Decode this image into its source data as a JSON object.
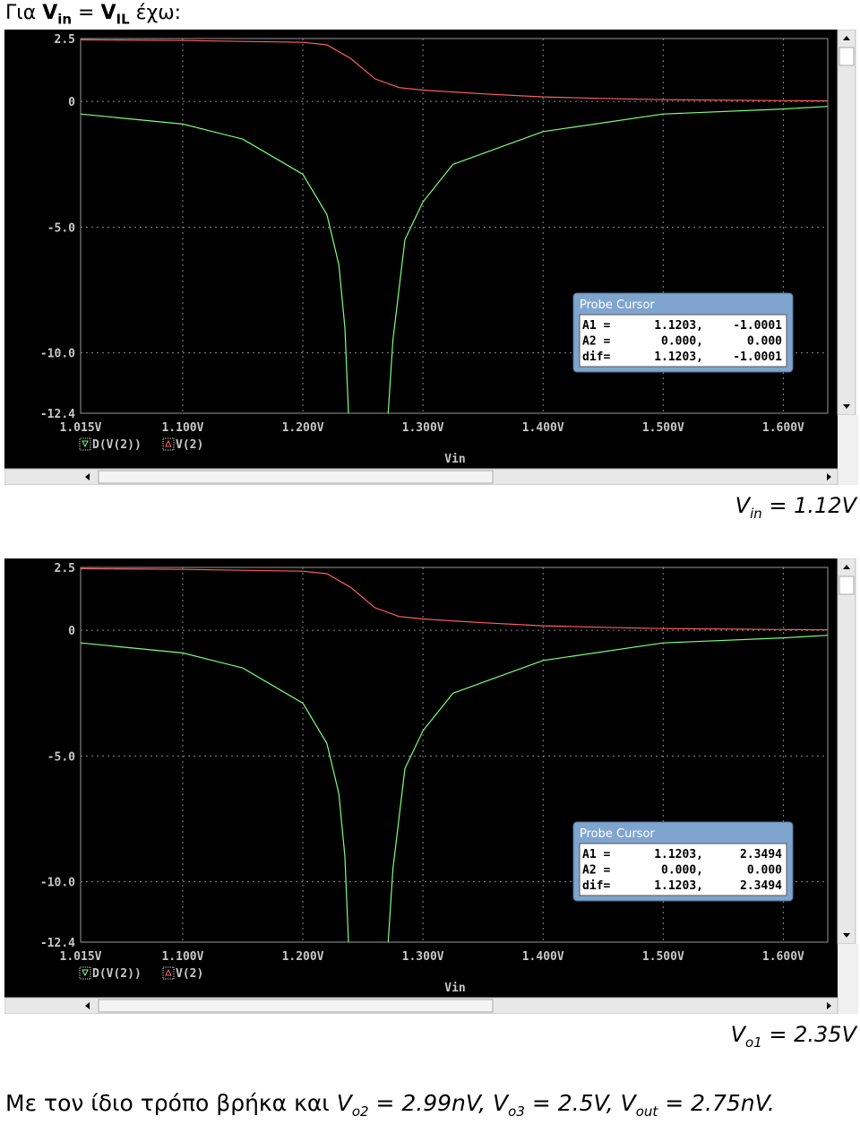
{
  "heading": {
    "parts": [
      "Για ",
      "V",
      "in",
      " = ",
      "V",
      "IL",
      " έχω:"
    ]
  },
  "figures": [
    {
      "chart_data": {
        "type": "line",
        "xlabel": "Vin",
        "xlim": [
          1.015,
          1.637
        ],
        "ylim": [
          -12.4,
          2.5
        ],
        "xticks": [
          {
            "value": 1.015,
            "label": "1.015V"
          },
          {
            "value": 1.1,
            "label": "1.100V"
          },
          {
            "value": 1.2,
            "label": "1.200V"
          },
          {
            "value": 1.3,
            "label": "1.300V"
          },
          {
            "value": 1.4,
            "label": "1.400V"
          },
          {
            "value": 1.5,
            "label": "1.500V"
          },
          {
            "value": 1.6,
            "label": "1.600V"
          }
        ],
        "yticks": [
          {
            "value": 2.5,
            "label": "2.5"
          },
          0,
          {
            "value": -5,
            "label": "-5.0"
          },
          {
            "value": -10,
            "label": "-10.0"
          },
          {
            "value": -12.4,
            "label": "-12.4"
          }
        ],
        "grid": true,
        "series": [
          {
            "name": "D(V(2))",
            "color": "#7cff7c",
            "marker": "down",
            "x": [
              1.015,
              1.1,
              1.15,
              1.2,
              1.22,
              1.23,
              1.235,
              1.238,
              1.27,
              1.271,
              1.275,
              1.285,
              1.3,
              1.325,
              1.4,
              1.5,
              1.6,
              1.637
            ],
            "values": [
              -0.5,
              -0.9,
              -1.5,
              -2.9,
              -4.5,
              -6.5,
              -9,
              -12.4,
              null,
              -12.4,
              -9.5,
              -5.5,
              -4,
              -2.5,
              -1.2,
              -0.5,
              -0.3,
              -0.2
            ]
          },
          {
            "name": "V(2)",
            "color": "#ff6060",
            "marker": "up",
            "x": [
              1.015,
              1.1,
              1.2,
              1.22,
              1.24,
              1.26,
              1.28,
              1.3,
              1.35,
              1.4,
              1.45,
              1.5,
              1.55,
              1.6,
              1.637
            ],
            "values": [
              2.45,
              2.42,
              2.35,
              2.25,
              1.7,
              0.9,
              0.55,
              0.45,
              0.3,
              0.18,
              0.12,
              0.07,
              0.05,
              0.03,
              0.02
            ]
          }
        ]
      },
      "cursor": {
        "title": "Probe Cursor",
        "rows": [
          [
            "A1 =",
            "1.1203,",
            "-1.0001"
          ],
          [
            "A2 =",
            "0.000,",
            "0.000"
          ],
          [
            "dif=",
            "1.1203,",
            "-1.0001"
          ]
        ]
      },
      "caption": [
        "V",
        "in",
        " = 1.12V"
      ]
    },
    {
      "chart_data": {
        "type": "line",
        "xlabel": "Vin",
        "xlim": [
          1.015,
          1.637
        ],
        "ylim": [
          -12.4,
          2.5
        ],
        "xticks": [
          {
            "value": 1.015,
            "label": "1.015V"
          },
          {
            "value": 1.1,
            "label": "1.100V"
          },
          {
            "value": 1.2,
            "label": "1.200V"
          },
          {
            "value": 1.3,
            "label": "1.300V"
          },
          {
            "value": 1.4,
            "label": "1.400V"
          },
          {
            "value": 1.5,
            "label": "1.500V"
          },
          {
            "value": 1.6,
            "label": "1.600V"
          }
        ],
        "yticks": [
          {
            "value": 2.5,
            "label": "2.5"
          },
          0,
          {
            "value": -5,
            "label": "-5.0"
          },
          {
            "value": -10,
            "label": "-10.0"
          },
          {
            "value": -12.4,
            "label": "-12.4"
          }
        ],
        "grid": true,
        "series": [
          {
            "name": "D(V(2))",
            "color": "#7cff7c",
            "marker": "down",
            "x": [
              1.015,
              1.1,
              1.15,
              1.2,
              1.22,
              1.23,
              1.235,
              1.238,
              1.27,
              1.271,
              1.275,
              1.285,
              1.3,
              1.325,
              1.4,
              1.5,
              1.6,
              1.637
            ],
            "values": [
              -0.5,
              -0.9,
              -1.5,
              -2.9,
              -4.5,
              -6.5,
              -9,
              -12.4,
              null,
              -12.4,
              -9.5,
              -5.5,
              -4,
              -2.5,
              -1.2,
              -0.5,
              -0.3,
              -0.2
            ]
          },
          {
            "name": "V(2)",
            "color": "#ff6060",
            "marker": "up",
            "x": [
              1.015,
              1.1,
              1.2,
              1.22,
              1.24,
              1.26,
              1.28,
              1.3,
              1.35,
              1.4,
              1.45,
              1.5,
              1.55,
              1.6,
              1.637
            ],
            "values": [
              2.45,
              2.42,
              2.35,
              2.25,
              1.7,
              0.9,
              0.55,
              0.45,
              0.3,
              0.18,
              0.12,
              0.07,
              0.05,
              0.03,
              0.02
            ]
          }
        ]
      },
      "cursor": {
        "title": "Probe Cursor",
        "rows": [
          [
            "A1 =",
            "1.1203,",
            "2.3494"
          ],
          [
            "A2 =",
            "0.000,",
            "0.000"
          ],
          [
            "dif=",
            "1.1203,",
            "2.3494"
          ]
        ]
      },
      "caption": [
        "V",
        "o1",
        " = 2.35V"
      ]
    }
  ],
  "closing": {
    "parts": [
      "Με τον ίδιο τρόπο βρήκα και ",
      "V",
      "o2",
      " = 2.99nV, ",
      "V",
      "o3",
      " = 2.5V, ",
      "V",
      "out",
      " = 2.75nV."
    ]
  }
}
